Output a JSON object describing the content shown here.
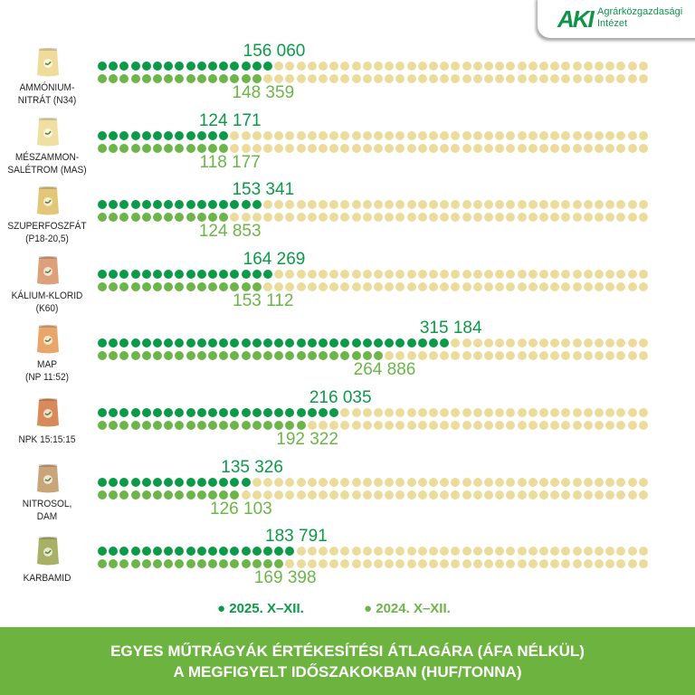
{
  "logo": {
    "mark": "AKI",
    "line1": "Agrárközgazdasági",
    "line2": "Intézet"
  },
  "colors": {
    "current": "#0b9a47",
    "previous": "#6cb548",
    "empty": "#ecdc9c",
    "banner": "#6db33f"
  },
  "chart_data": {
    "type": "dot-bar",
    "unit_per_dot": 10000,
    "dots_per_row": 50,
    "categories": [
      {
        "name_line1": "AMMÓNIUM-",
        "name_line2": "NITRÁT (N34)",
        "icon": "fertilizer-sack-icon"
      },
      {
        "name_line1": "MÉSZAMMON-",
        "name_line2": "SALÉTROM (MAS)",
        "icon": "fertilizer-bag-icon"
      },
      {
        "name_line1": "SZUPERFOSZFÁT",
        "name_line2": "(P18-20,5)",
        "icon": "fertilizer-bag-icon"
      },
      {
        "name_line1": "KÁLIUM-KLORID",
        "name_line2": "(K60)",
        "icon": "fertilizer-box-icon"
      },
      {
        "name_line1": "MAP",
        "name_line2": "(NP 11:52)",
        "icon": "fertilizer-bag-icon"
      },
      {
        "name_line1": "NPK 15:15:15",
        "name_line2": "",
        "icon": "fertilizer-bag-icon"
      },
      {
        "name_line1": "NITROSOL,",
        "name_line2": "DAM",
        "icon": "fertilizer-sack-icon"
      },
      {
        "name_line1": "KARBAMID",
        "name_line2": "",
        "icon": "canister-icon"
      }
    ],
    "series": [
      {
        "name": "2025. X–XII.",
        "values": [
          156060,
          124171,
          153341,
          164269,
          315184,
          216035,
          135326,
          183791
        ],
        "labels": [
          "156 060",
          "124 171",
          "153 341",
          "164 269",
          "315 184",
          "216 035",
          "135 326",
          "183 791"
        ]
      },
      {
        "name": "2024. X–XII.",
        "values": [
          148359,
          118177,
          124853,
          153112,
          264886,
          192322,
          126103,
          169398
        ],
        "labels": [
          "148 359",
          "118 177",
          "124 853",
          "153 112",
          "264 886",
          "192 322",
          "126 103",
          "169 398"
        ]
      }
    ],
    "legend_position": "bottom",
    "title_line1": "EGYES MŰTRÁGYÁK ÉRTÉKESÍTÉSI ÁTLAGÁRA (ÁFA NÉLKÜL)",
    "title_line2": "A MEGFIGYELT IDŐSZAKOKBAN (HUF/TONNA)"
  },
  "icon_colors": [
    "#efdc9a",
    "#efe0a2",
    "#e4c678",
    "#dca07a",
    "#e8a66a",
    "#d98a5a",
    "#c8a679",
    "#a8b066"
  ]
}
